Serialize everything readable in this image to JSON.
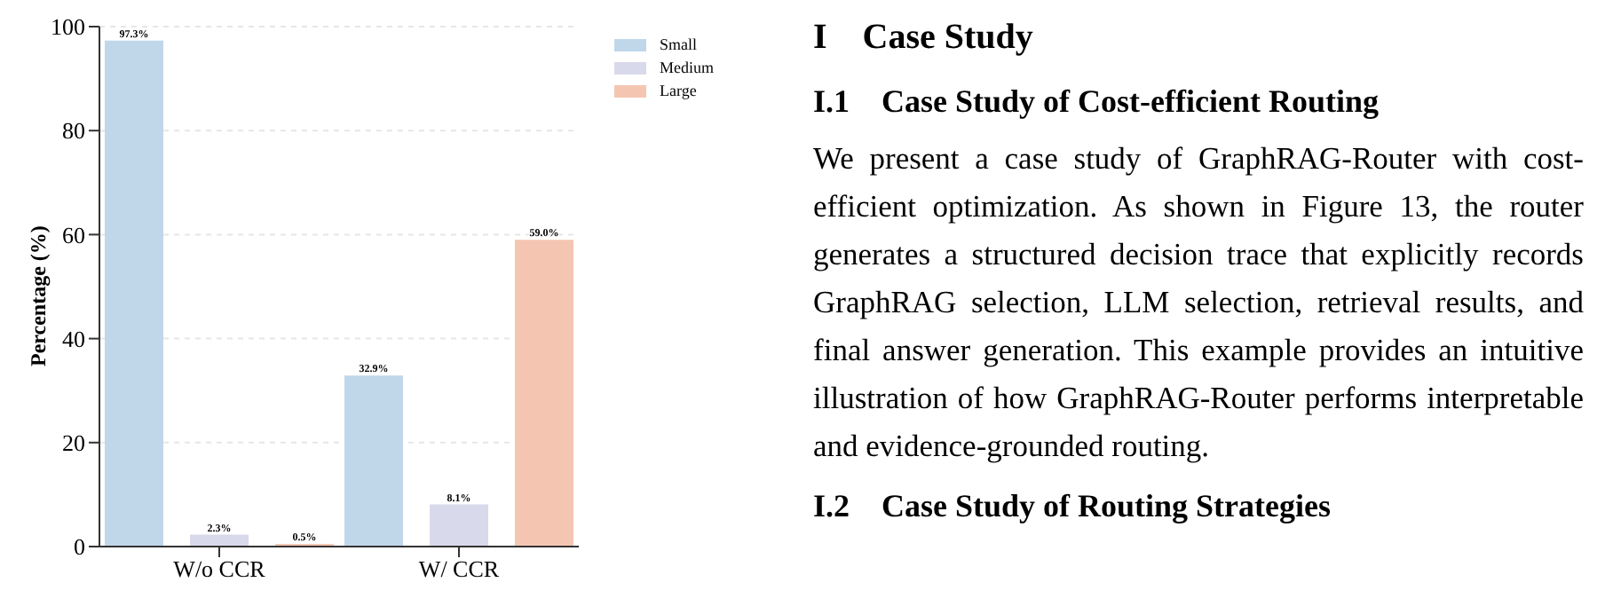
{
  "chart_data": {
    "type": "bar",
    "ylabel": "Percentage (%)",
    "categories": [
      "W/o CCR",
      "W/ CCR"
    ],
    "series": [
      {
        "name": "Small",
        "color": "#c0d7ea",
        "values": [
          97.3,
          32.9
        ],
        "value_labels": [
          "97.3%",
          "32.9%"
        ]
      },
      {
        "name": "Medium",
        "color": "#d9d9ec",
        "values": [
          2.3,
          8.1
        ],
        "value_labels": [
          "2.3%",
          "8.1%"
        ]
      },
      {
        "name": "Large",
        "color": "#f4c6b2",
        "values": [
          0.5,
          59.0
        ],
        "value_labels": [
          "0.5%",
          "59.0%"
        ]
      }
    ],
    "ylim": [
      0,
      100
    ],
    "yticks": [
      0,
      20,
      40,
      60,
      80,
      100
    ],
    "grid": "y",
    "legend": "top right",
    "annotations": [
      "I    Case Study",
      "I.1    Case Study of Cost-efficient Routing",
      "We present a case study of GraphRAG-Router with cost-efficient optimization. As shown in Figure 13, the router generates a structured decision trace that explicitly records GraphRAG selection, LLM selection, retrieval results, and final answer generation. This example provides an intuitive illustration of how GraphRAG-Router performs interpretable and evidence-grounded routing.",
      "I.2    Case Study of Routing Strategies"
    ]
  }
}
